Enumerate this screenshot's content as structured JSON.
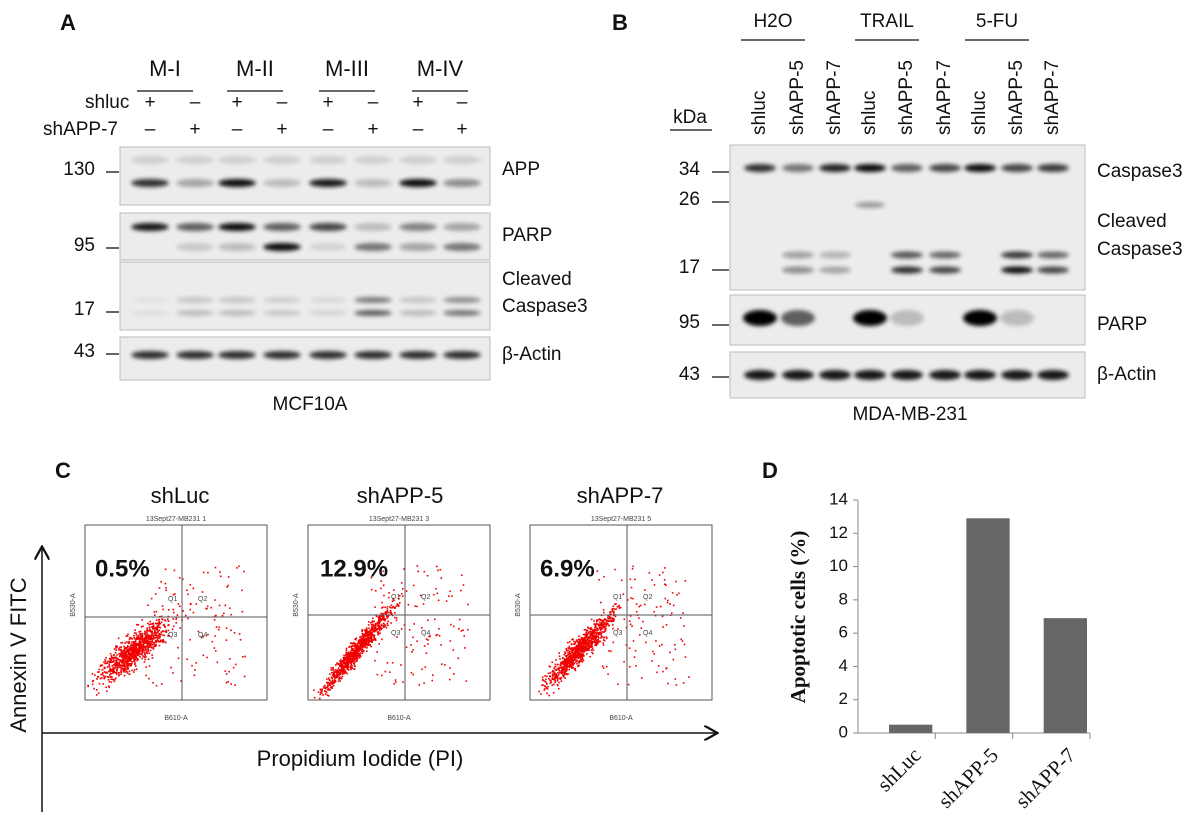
{
  "panel_a": {
    "label": "A",
    "groups": [
      "M-I",
      "M-II",
      "M-III",
      "M-IV"
    ],
    "rows": [
      {
        "name": "shluc",
        "signs": [
          "+",
          "–",
          "+",
          "–",
          "+",
          "–",
          "+",
          "–"
        ]
      },
      {
        "name": "shAPP-7",
        "signs": [
          "–",
          "+",
          "–",
          "+",
          "–",
          "+",
          "–",
          "+"
        ]
      }
    ],
    "markers": [
      130,
      95,
      17,
      43
    ],
    "band_labels": [
      "APP",
      "PARP",
      "Cleaved",
      "Caspase3",
      "β-Actin"
    ],
    "cell_line": "MCF10A"
  },
  "panel_b": {
    "label": "B",
    "treatments": [
      "H2O",
      "TRAIL",
      "5-FU"
    ],
    "lanes": [
      "shluc",
      "shAPP-5",
      "shAPP-7",
      "shluc",
      "shAPP-5",
      "shAPP-7",
      "shluc",
      "shAPP-5",
      "shAPP-7"
    ],
    "unit": "kDa",
    "markers": [
      34,
      26,
      17,
      95,
      43
    ],
    "band_labels": [
      "Caspase3",
      "Cleaved",
      "Caspase3",
      "PARP",
      "β-Actin"
    ],
    "cell_line": "MDA-MB-231"
  },
  "panel_c": {
    "label": "C",
    "y_axis_label": "Annexin V FITC",
    "x_axis_label": "Propidium Iodide (PI)",
    "plots": [
      {
        "title": "shLuc",
        "header": "13Sept27-MB231 1",
        "percent": "0.5%"
      },
      {
        "title": "shAPP-5",
        "header": "13Sept27-MB231 3",
        "percent": "12.9%"
      },
      {
        "title": "shAPP-7",
        "header": "13Sept27-MB231 5",
        "percent": "6.9%"
      }
    ],
    "quadrants": [
      "Q1",
      "Q2",
      "Q3",
      "Q4"
    ],
    "x_channel": "B610-A",
    "y_channel": "B530-A"
  },
  "chart_data": {
    "type": "bar",
    "label": "D",
    "y_axis_label": "Apoptotic cells (%)",
    "categories": [
      "shLuc",
      "shAPP-5",
      "shAPP-7"
    ],
    "values": [
      0.5,
      12.9,
      6.9
    ],
    "color": "#666666",
    "ylim": [
      0,
      14
    ],
    "yticks": [
      0,
      2,
      4,
      6,
      8,
      10,
      12,
      14
    ],
    "grid": false
  }
}
